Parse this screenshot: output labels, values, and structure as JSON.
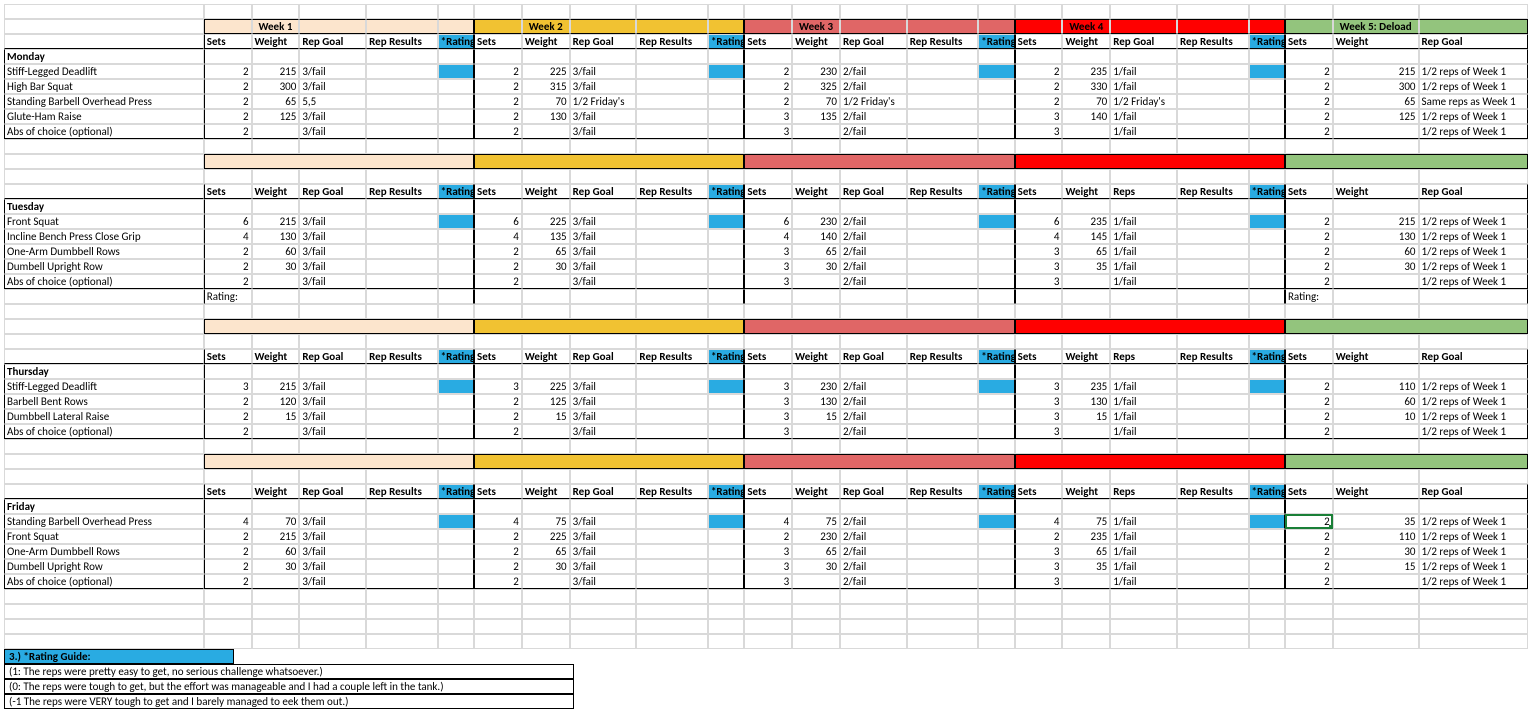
{
  "colors": {
    "week1_light": "#fce5cd",
    "week1_dark": "#fce5cd",
    "week2_light": "#f6b26b",
    "week2_dark": "#f1a33c",
    "week3_light": "#e06666",
    "week3_dark": "#d95f02",
    "week4_light": "#ff0000",
    "week4_dark": "#ff0000",
    "week5_light": "#93c47d",
    "week5_dark": "#76b947",
    "week1_title_bg": "#fce5cd",
    "week2_title_bg": "#f1c232",
    "week3_title_bg": "#e06666",
    "week4_title_bg": "#ff0000",
    "week5_title_bg": "#93c47d",
    "rating": "#29abe2"
  },
  "weeks": [
    {
      "title": "Week 1",
      "cols": [
        "Sets",
        "Weight",
        "Rep Goal",
        "Rep Results",
        "*Rating"
      ],
      "bg": "#fce5cd",
      "band_bg": "#fce5cd"
    },
    {
      "title": "Week 2",
      "cols": [
        "Sets",
        "Weight",
        "Rep Goal",
        "Rep Results",
        "*Rating"
      ],
      "bg": "#f1c232",
      "band_bg": "#f1c232"
    },
    {
      "title": "Week 3",
      "cols": [
        "Sets",
        "Weight",
        "Rep Goal",
        "Rep Results",
        "*Rating"
      ],
      "bg": "#e06666",
      "band_bg": "#e06666"
    },
    {
      "title": "Week 4",
      "cols": [
        "Sets",
        "Weight",
        "Rep Goal",
        "Rep Results",
        "*Rating"
      ],
      "bg": "#ff0000",
      "band_bg": "#ff0000"
    },
    {
      "title": "Week 5: Deload",
      "cols": [
        "Sets",
        "Weight",
        "Rep Goal"
      ],
      "bg": "#93c47d",
      "band_bg": "#93c47d"
    }
  ],
  "alt_cols_week4_later": [
    "Sets",
    "Weight",
    "Reps",
    "Rep Results",
    "*Rating"
  ],
  "days": [
    {
      "name": "Monday",
      "exercises": [
        {
          "name": "Stiff-Legged Deadlift",
          "w": [
            {
              "s": 2,
              "wt": 215,
              "r": "3/fail"
            },
            {
              "s": 2,
              "wt": 225,
              "r": "3/fail"
            },
            {
              "s": 2,
              "wt": 230,
              "r": "2/fail"
            },
            {
              "s": 2,
              "wt": 235,
              "r": "1/fail"
            },
            {
              "s": 2,
              "wt": 215,
              "r": "1/2 reps of Week 1"
            }
          ]
        },
        {
          "name": "High Bar Squat",
          "w": [
            {
              "s": 2,
              "wt": 300,
              "r": "3/fail"
            },
            {
              "s": 2,
              "wt": 315,
              "r": "3/fail"
            },
            {
              "s": 2,
              "wt": 325,
              "r": "2/fail"
            },
            {
              "s": 2,
              "wt": 330,
              "r": "1/fail"
            },
            {
              "s": 2,
              "wt": 300,
              "r": "1/2 reps of Week 1"
            }
          ]
        },
        {
          "name": "Standing Barbell Overhead Press",
          "w": [
            {
              "s": 2,
              "wt": 65,
              "r": "5,5"
            },
            {
              "s": 2,
              "wt": 70,
              "r": "1/2 Friday's"
            },
            {
              "s": 2,
              "wt": 70,
              "r": "1/2 Friday's"
            },
            {
              "s": 2,
              "wt": 70,
              "r": "1/2 Friday's"
            },
            {
              "s": 2,
              "wt": 65,
              "r": "Same reps as Week 1"
            }
          ]
        },
        {
          "name": "Glute-Ham Raise",
          "w": [
            {
              "s": 2,
              "wt": 125,
              "r": "3/fail"
            },
            {
              "s": 2,
              "wt": 130,
              "r": "3/fail"
            },
            {
              "s": 3,
              "wt": 135,
              "r": "2/fail"
            },
            {
              "s": 3,
              "wt": 140,
              "r": "1/fail"
            },
            {
              "s": 2,
              "wt": 125,
              "r": "1/2 reps of Week 1"
            }
          ]
        },
        {
          "name": "Abs of choice (optional)",
          "w": [
            {
              "s": 2,
              "wt": "",
              "r": "3/fail"
            },
            {
              "s": 2,
              "wt": "",
              "r": "3/fail"
            },
            {
              "s": 3,
              "wt": "",
              "r": "2/fail"
            },
            {
              "s": 3,
              "wt": "",
              "r": "1/fail"
            },
            {
              "s": 2,
              "wt": "",
              "r": "1/2 reps of Week 1"
            }
          ]
        }
      ]
    },
    {
      "name": "Tuesday",
      "rating_line": "Rating:",
      "exercises": [
        {
          "name": "Front Squat",
          "w": [
            {
              "s": 6,
              "wt": 215,
              "r": "3/fail"
            },
            {
              "s": 6,
              "wt": 225,
              "r": "3/fail"
            },
            {
              "s": 6,
              "wt": 230,
              "r": "2/fail"
            },
            {
              "s": 6,
              "wt": 235,
              "r": "1/fail"
            },
            {
              "s": 2,
              "wt": 215,
              "r": "1/2 reps of Week 1"
            }
          ]
        },
        {
          "name": "Incline Bench Press Close Grip",
          "w": [
            {
              "s": 4,
              "wt": 130,
              "r": "3/fail"
            },
            {
              "s": 4,
              "wt": 135,
              "r": "3/fail"
            },
            {
              "s": 4,
              "wt": 140,
              "r": "2/fail"
            },
            {
              "s": 4,
              "wt": 145,
              "r": "1/fail"
            },
            {
              "s": 2,
              "wt": 130,
              "r": "1/2 reps of Week 1"
            }
          ]
        },
        {
          "name": "One-Arm Dumbbell Rows",
          "w": [
            {
              "s": 2,
              "wt": 60,
              "r": "3/fail"
            },
            {
              "s": 2,
              "wt": 65,
              "r": "3/fail"
            },
            {
              "s": 3,
              "wt": 65,
              "r": "2/fail"
            },
            {
              "s": 3,
              "wt": 65,
              "r": "1/fail"
            },
            {
              "s": 2,
              "wt": 60,
              "r": "1/2 reps of Week 1"
            }
          ]
        },
        {
          "name": "Dumbell Upright Row",
          "w": [
            {
              "s": 2,
              "wt": 30,
              "r": "3/fail"
            },
            {
              "s": 2,
              "wt": 30,
              "r": "3/fail"
            },
            {
              "s": 3,
              "wt": 30,
              "r": "2/fail"
            },
            {
              "s": 3,
              "wt": 35,
              "r": "1/fail"
            },
            {
              "s": 2,
              "wt": 30,
              "r": "1/2 reps of Week 1"
            }
          ]
        },
        {
          "name": "Abs of choice (optional)",
          "w": [
            {
              "s": 2,
              "wt": "",
              "r": "3/fail"
            },
            {
              "s": 2,
              "wt": "",
              "r": "3/fail"
            },
            {
              "s": 3,
              "wt": "",
              "r": "2/fail"
            },
            {
              "s": 3,
              "wt": "",
              "r": "1/fail"
            },
            {
              "s": 2,
              "wt": "",
              "r": "1/2 reps of Week 1"
            }
          ]
        }
      ]
    },
    {
      "name": "Thursday",
      "exercises": [
        {
          "name": "Stiff-Legged Deadlift",
          "w": [
            {
              "s": 3,
              "wt": 215,
              "r": "3/fail"
            },
            {
              "s": 3,
              "wt": 225,
              "r": "3/fail"
            },
            {
              "s": 3,
              "wt": 230,
              "r": "2/fail"
            },
            {
              "s": 3,
              "wt": 235,
              "r": "1/fail"
            },
            {
              "s": 2,
              "wt": 110,
              "r": "1/2 reps of Week 1"
            }
          ]
        },
        {
          "name": "Barbell Bent Rows",
          "w": [
            {
              "s": 2,
              "wt": 120,
              "r": "3/fail"
            },
            {
              "s": 2,
              "wt": 125,
              "r": "3/fail"
            },
            {
              "s": 3,
              "wt": 130,
              "r": "2/fail"
            },
            {
              "s": 3,
              "wt": 130,
              "r": "1/fail"
            },
            {
              "s": 2,
              "wt": 60,
              "r": "1/2 reps of Week 1"
            }
          ]
        },
        {
          "name": "Dumbbell Lateral Raise",
          "w": [
            {
              "s": 2,
              "wt": 15,
              "r": "3/fail"
            },
            {
              "s": 2,
              "wt": 15,
              "r": "3/fail"
            },
            {
              "s": 3,
              "wt": 15,
              "r": "2/fail"
            },
            {
              "s": 3,
              "wt": 15,
              "r": "1/fail"
            },
            {
              "s": 2,
              "wt": 10,
              "r": "1/2 reps of Week 1"
            }
          ]
        },
        {
          "name": "Abs of choice (optional)",
          "w": [
            {
              "s": 2,
              "wt": "",
              "r": "3/fail"
            },
            {
              "s": 2,
              "wt": "",
              "r": "3/fail"
            },
            {
              "s": 3,
              "wt": "",
              "r": "2/fail"
            },
            {
              "s": 3,
              "wt": "",
              "r": "1/fail"
            },
            {
              "s": 2,
              "wt": "",
              "r": "1/2 reps of Week 1"
            }
          ]
        }
      ]
    },
    {
      "name": "Friday",
      "selected": {
        "row": 0,
        "week": 4,
        "field": "sets"
      },
      "exercises": [
        {
          "name": "Standing Barbell Overhead Press",
          "w": [
            {
              "s": 4,
              "wt": 70,
              "r": "3/fail"
            },
            {
              "s": 4,
              "wt": 75,
              "r": "3/fail"
            },
            {
              "s": 4,
              "wt": 75,
              "r": "2/fail"
            },
            {
              "s": 4,
              "wt": 75,
              "r": "1/fail"
            },
            {
              "s": 2,
              "wt": 35,
              "r": "1/2 reps of Week 1"
            }
          ]
        },
        {
          "name": "Front Squat",
          "w": [
            {
              "s": 2,
              "wt": 215,
              "r": "3/fail"
            },
            {
              "s": 2,
              "wt": 225,
              "r": "3/fail"
            },
            {
              "s": 2,
              "wt": 230,
              "r": "2/fail"
            },
            {
              "s": 2,
              "wt": 235,
              "r": "1/fail"
            },
            {
              "s": 2,
              "wt": 110,
              "r": "1/2 reps of Week 1"
            }
          ]
        },
        {
          "name": "One-Arm Dumbbell Rows",
          "w": [
            {
              "s": 2,
              "wt": 60,
              "r": "3/fail"
            },
            {
              "s": 2,
              "wt": 65,
              "r": "3/fail"
            },
            {
              "s": 3,
              "wt": 65,
              "r": "2/fail"
            },
            {
              "s": 3,
              "wt": 65,
              "r": "1/fail"
            },
            {
              "s": 2,
              "wt": 30,
              "r": "1/2 reps of Week 1"
            }
          ]
        },
        {
          "name": "Dumbell Upright Row",
          "w": [
            {
              "s": 2,
              "wt": 30,
              "r": "3/fail"
            },
            {
              "s": 2,
              "wt": 30,
              "r": "3/fail"
            },
            {
              "s": 3,
              "wt": 30,
              "r": "2/fail"
            },
            {
              "s": 3,
              "wt": 35,
              "r": "1/fail"
            },
            {
              "s": 2,
              "wt": 15,
              "r": "1/2 reps of Week 1"
            }
          ]
        },
        {
          "name": "Abs of choice (optional)",
          "w": [
            {
              "s": 2,
              "wt": "",
              "r": "3/fail"
            },
            {
              "s": 2,
              "wt": "",
              "r": "3/fail"
            },
            {
              "s": 3,
              "wt": "",
              "r": "2/fail"
            },
            {
              "s": 3,
              "wt": "",
              "r": "1/fail"
            },
            {
              "s": 2,
              "wt": "",
              "r": "1/2 reps of Week 1"
            }
          ]
        }
      ]
    }
  ],
  "legend": {
    "title": "3.) *Rating Guide:",
    "lines": [
      "(1: The reps were pretty easy to get, no serious challenge whatsoever.)",
      "(0: The reps were tough to get, but the effort was manageable and I had a couple left in the tank.)",
      "(-1 The reps were VERY tough to get and I barely managed to eek them out.)"
    ]
  }
}
